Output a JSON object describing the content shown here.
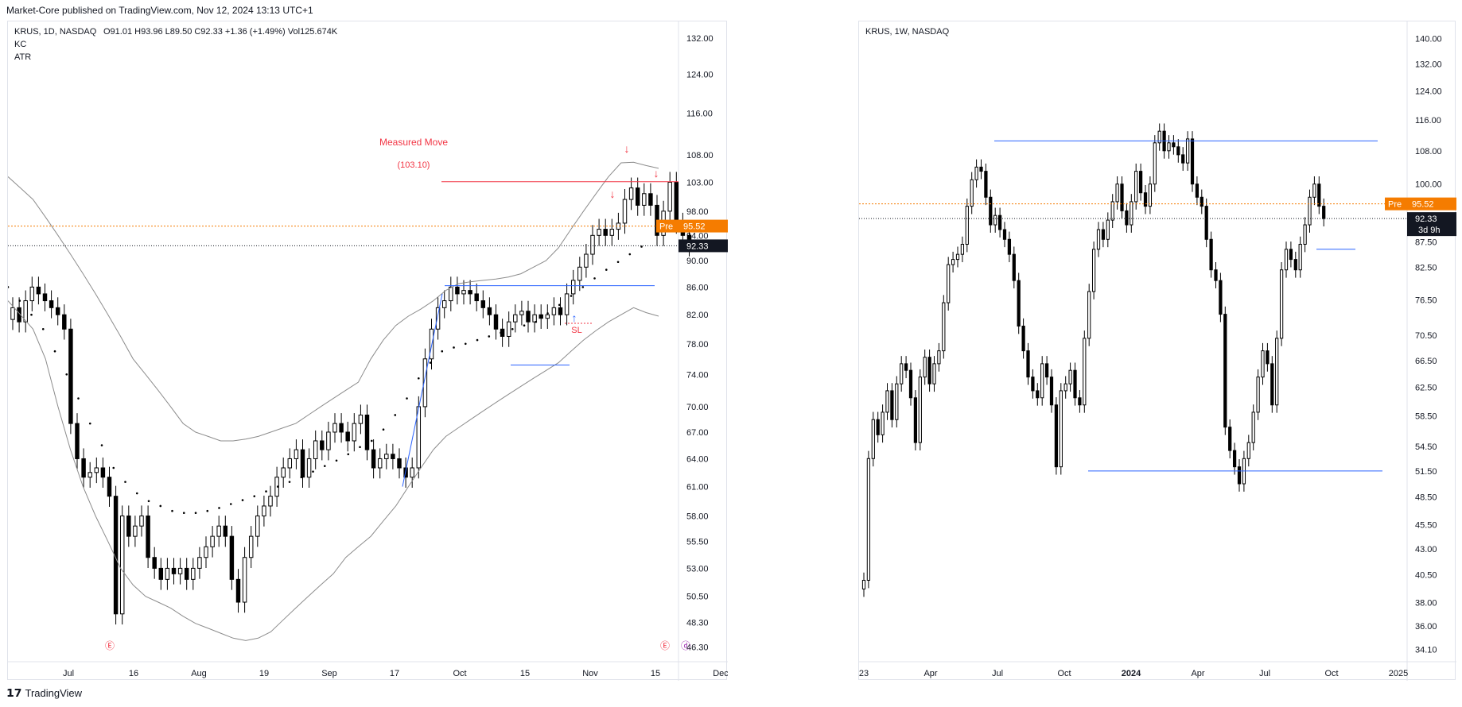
{
  "header": {
    "published": "Market-Core published on TradingView.com, Nov 12, 2024 13:13 UTC+1"
  },
  "footer": {
    "brand": "TradingView",
    "logo_icon": "tradingview-logo-icon"
  },
  "colors": {
    "candle_up": "#ffffff",
    "candle_down": "#000000",
    "candle_outline": "#000000",
    "keltner": "#8c8c8c",
    "measured_move": "#f23645",
    "blue_lines": "#2962ff",
    "pre_market": "#f57c00",
    "last_price_bg": "#131722"
  },
  "chart_data": [
    {
      "type": "candlestick",
      "title": "KRUS, 1D, NASDAQ",
      "ohlc_header": {
        "o": "O91.01",
        "h": "H93.96",
        "l": "L89.50",
        "c": "C92.33",
        "change": "+1.36 (+1.49%)",
        "vol": "Vol125.674K"
      },
      "indicators": [
        "KC",
        "ATR"
      ],
      "y_ticks": [
        "132.00",
        "124.00",
        "116.00",
        "108.00",
        "103.00",
        "98.00",
        "94.00",
        "90.00",
        "86.00",
        "82.00",
        "78.00",
        "74.00",
        "70.00",
        "67.00",
        "64.00",
        "61.00",
        "58.00",
        "55.50",
        "53.00",
        "50.50",
        "48.30",
        "46.30"
      ],
      "x_ticks": [
        "Jul",
        "16",
        "Aug",
        "19",
        "Sep",
        "17",
        "Oct",
        "15",
        "Nov",
        "15",
        "Dec"
      ],
      "y_scale": "log",
      "ylim": [
        45.5,
        134
      ],
      "pre_market": {
        "label": "Pre",
        "value": "95.52"
      },
      "last_price": {
        "value": "92.33"
      },
      "annotations": {
        "title": "Measured Move",
        "target": "(103.10)",
        "stop_label": "SL",
        "target_value": 103.1,
        "stop_value": 80.8
      },
      "events": [
        "earnings",
        "dividend"
      ],
      "series": [
        {
          "name": "KRUS",
          "closes": [
            83,
            81,
            84,
            86,
            85,
            84,
            83,
            82,
            80,
            68,
            64,
            62,
            62.5,
            63,
            62,
            60,
            49,
            58,
            56,
            57,
            58,
            54,
            53,
            52,
            53,
            52.5,
            53,
            52,
            53,
            54,
            55,
            56,
            57,
            56,
            52,
            50,
            54,
            56,
            58,
            59,
            60,
            62,
            63,
            64,
            65,
            62,
            64,
            66,
            65,
            67,
            68,
            67,
            66,
            68,
            69,
            65,
            63,
            64,
            64.5,
            64,
            63,
            62,
            63,
            70,
            76,
            80,
            83,
            84,
            86,
            85,
            85.5,
            85,
            84,
            83,
            82,
            80,
            79,
            81,
            82,
            82.5,
            81,
            82,
            81.5,
            82,
            83,
            82,
            85,
            87,
            89,
            91,
            94,
            95,
            94,
            95,
            96,
            100,
            102,
            99,
            101,
            99,
            94,
            98,
            103,
            96,
            94,
            92.33
          ]
        },
        {
          "name": "KC",
          "upper": [
            104,
            102,
            100,
            97,
            94,
            91,
            88,
            85,
            82,
            79,
            76,
            74,
            72,
            70,
            68,
            67,
            66.5,
            66,
            66,
            66.2,
            66.5,
            67,
            67.5,
            68,
            69,
            70,
            71,
            72,
            73,
            76,
            78.5,
            80.5,
            81.8,
            82.8,
            84,
            85.5,
            86.5,
            86.8,
            87,
            87.2,
            87.5,
            88,
            89,
            90,
            92,
            95,
            98,
            101,
            104,
            106.5,
            106.6,
            106,
            105.5
          ],
          "lower": [
            84,
            82,
            80,
            76,
            70,
            65,
            61,
            58,
            55.5,
            53,
            51.5,
            50.5,
            50,
            49.5,
            48.8,
            48.2,
            47.8,
            47.4,
            47,
            46.8,
            47,
            47.5,
            48.5,
            49.5,
            50.5,
            51.5,
            52.5,
            54,
            55,
            56,
            57.5,
            59,
            61,
            63,
            65,
            66.5,
            67.5,
            68.5,
            69.5,
            70.5,
            71.5,
            72.5,
            73.5,
            74.5,
            75.5,
            77,
            78.5,
            79.8,
            81,
            82,
            83,
            82.3,
            81.8
          ]
        },
        {
          "name": "Trailing stop",
          "values": [
            86,
            84,
            82,
            80,
            77,
            74,
            71,
            68,
            65.5,
            63,
            61.5,
            60.3,
            59.5,
            59,
            58.5,
            58.3,
            58.3,
            58.5,
            58.8,
            59.2,
            59.6,
            60,
            60.5,
            61,
            61.5,
            62,
            62.6,
            63.2,
            63.8,
            64.5,
            65.3,
            66,
            67.3,
            69,
            71,
            73.5,
            75.5,
            77,
            77.5,
            78,
            78.5,
            79,
            79.5,
            80,
            80.5,
            81,
            82.2,
            83.4,
            84.7,
            86,
            87.3,
            88.6,
            89.8,
            91,
            92.2
          ]
        }
      ]
    },
    {
      "type": "candlestick",
      "title": "KRUS, 1W, NASDAQ",
      "y_ticks": [
        "140.00",
        "132.00",
        "124.00",
        "116.00",
        "108.00",
        "100.00",
        "92.33",
        "87.50",
        "82.50",
        "76.50",
        "70.50",
        "66.50",
        "62.50",
        "58.50",
        "54.50",
        "51.50",
        "48.50",
        "45.50",
        "43.00",
        "40.50",
        "38.00",
        "36.00",
        "34.10"
      ],
      "x_ticks": [
        "23",
        "Apr",
        "Jul",
        "Oct",
        "2024",
        "Apr",
        "Jul",
        "Oct",
        "2025"
      ],
      "y_scale": "log",
      "ylim": [
        33.5,
        143
      ],
      "pre_market": {
        "label": "Pre",
        "value": "95.52"
      },
      "last_price": {
        "value": "92.33",
        "countdown": "3d 9h"
      },
      "levels": {
        "resistance": 110.5,
        "support": 51.5
      },
      "series": [
        {
          "name": "KRUS",
          "closes": [
            40,
            53,
            58,
            56,
            59,
            62,
            58,
            63,
            66,
            65,
            61,
            55,
            64,
            67,
            63,
            66,
            68,
            76,
            83,
            84,
            85,
            87,
            95,
            101,
            104,
            103,
            97,
            91,
            93,
            90,
            88,
            85,
            80,
            72,
            68,
            64,
            62,
            61,
            66,
            64,
            60,
            52,
            62,
            63,
            65,
            61,
            60,
            70,
            78,
            86,
            90,
            88,
            92,
            96,
            100,
            94,
            91,
            96,
            103,
            98,
            95,
            100,
            110,
            113,
            108,
            110,
            109,
            107,
            105,
            111,
            100,
            97,
            95,
            88,
            82,
            80,
            74,
            57,
            54,
            52,
            50,
            53,
            55,
            59,
            64,
            68,
            66,
            60,
            70,
            82,
            86,
            84,
            82,
            87,
            91,
            97,
            100,
            95,
            92.33
          ]
        }
      ]
    }
  ]
}
